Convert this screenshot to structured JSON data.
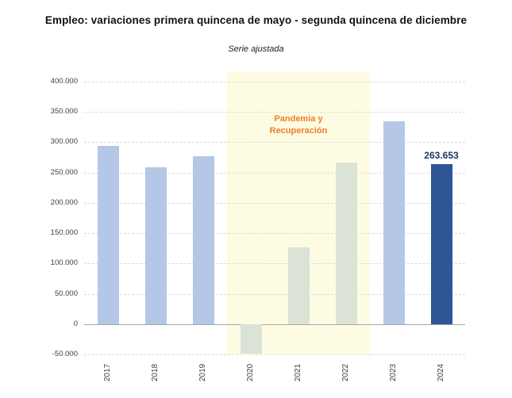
{
  "chart_data": {
    "type": "bar",
    "title": "Empleo: variaciones primera quincena de mayo - segunda quincena de diciembre",
    "subtitle": "Serie ajustada",
    "categories": [
      "2017",
      "2018",
      "2019",
      "2020",
      "2021",
      "2022",
      "2023",
      "2024"
    ],
    "values": [
      294000,
      259000,
      277000,
      -49000,
      126000,
      266000,
      335000,
      263653
    ],
    "bar_colors": [
      "#b4c7e7",
      "#b4c7e7",
      "#b4c7e7",
      "#dbe2d6",
      "#dbe2d6",
      "#dbe2d6",
      "#b4c7e7",
      "#2f5597"
    ],
    "xlabel": "",
    "ylabel": "",
    "ylim": [
      -50000,
      400000
    ],
    "gridline_step": 50000,
    "grid": "horizontal-dashed",
    "y_tick_labels": [
      "400.000",
      "350.000",
      "300.000",
      "250.000",
      "200.000",
      "150.000",
      "100.000",
      "50.000",
      "0",
      "-50.000"
    ],
    "value_labels": [
      {
        "category": "2024",
        "text": "263.653"
      }
    ],
    "highlight_band": {
      "start_category": "2020",
      "end_category": "2022",
      "label_lines": [
        "Pandemia y",
        "Recuperación"
      ],
      "fill": "#fdfce2",
      "text_color": "#ed7d31"
    },
    "colors": {
      "bar_default": "#b4c7e7",
      "bar_pandemic": "#dbe2d6",
      "bar_latest": "#2f5597",
      "gridline": "#d9d9d9",
      "zero_line": "#a6a6a6",
      "axis_text": "#404040",
      "value_label_text": "#1f3864",
      "title_text": "#111111"
    }
  }
}
